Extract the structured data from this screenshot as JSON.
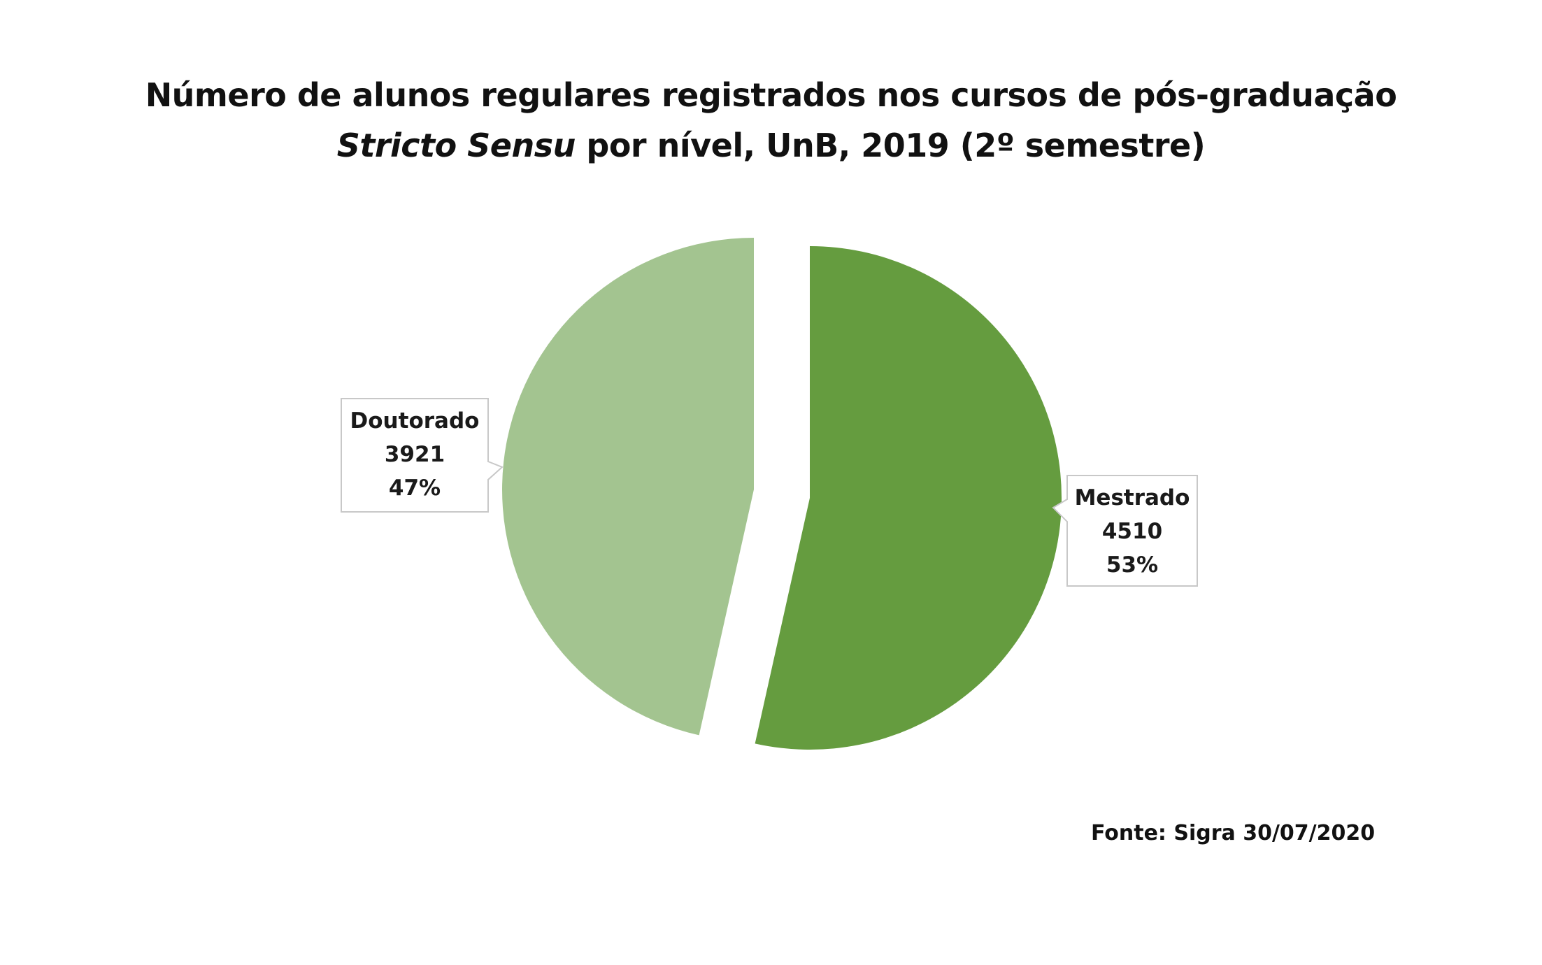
{
  "chart_data": {
    "type": "pie",
    "title_line1": "Número de alunos regulares registrados nos cursos de pós-graduação",
    "title_line2_emphasis": "Stricto Sensu",
    "title_line2_rest": " por nível, UnB, 2019 (2º semestre)",
    "categories": [
      "Mestrado",
      "Doutorado"
    ],
    "values": [
      4510,
      3921
    ],
    "percent_labels": [
      "53%",
      "47%"
    ],
    "colors": [
      "#659C3F",
      "#A3C490"
    ],
    "exploded": true,
    "labels": {
      "doutorado": {
        "name": "Doutorado",
        "value": "3921",
        "percent": "47%"
      },
      "mestrado": {
        "name": "Mestrado",
        "value": "4510",
        "percent": "53%"
      }
    },
    "source": "Fonte: Sigra 30/07/2020"
  }
}
